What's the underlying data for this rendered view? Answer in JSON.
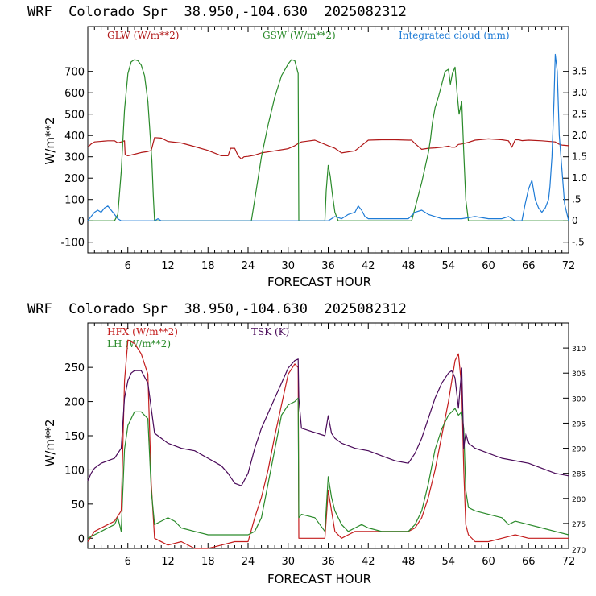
{
  "chart_data": [
    {
      "type": "line",
      "title": "WRF  Colorado Spr  38.950,-104.630  2025082312",
      "xlabel": "FORECAST HOUR",
      "ylabel": "W/m**2",
      "xlim": [
        0,
        72
      ],
      "ylim": [
        -150,
        910
      ],
      "y2lim": [
        -0.75,
        4.55
      ],
      "x_ticks": [
        6,
        12,
        18,
        24,
        30,
        36,
        42,
        48,
        54,
        60,
        66,
        72
      ],
      "y_ticks": [
        -100,
        0,
        100,
        200,
        300,
        400,
        500,
        600,
        700
      ],
      "y2_ticks": [
        {
          "v": -0.5,
          "label": "-.5"
        },
        {
          "v": 0,
          "label": "0"
        },
        {
          "v": 0.5,
          "label": ".5"
        },
        {
          "v": 1.0,
          "label": "1.0"
        },
        {
          "v": 1.5,
          "label": "1.5"
        },
        {
          "v": 2.0,
          "label": "2.0"
        },
        {
          "v": 2.5,
          "label": "2.5"
        },
        {
          "v": 3.0,
          "label": "3.0"
        },
        {
          "v": 3.5,
          "label": "3.5"
        }
      ],
      "series": [
        {
          "name": "GLW (W/m**2)",
          "color": "#b01818",
          "axis": "left",
          "x": [
            0,
            0.5,
            1,
            3,
            3.5,
            4,
            4.5,
            5,
            5.5,
            5.6,
            6,
            7,
            8,
            9,
            9.5,
            10,
            11,
            12,
            14,
            16,
            18,
            20,
            21,
            21.4,
            22,
            22.5,
            23,
            23.4,
            24,
            25,
            26,
            28,
            30,
            31,
            31.5,
            32,
            34,
            36,
            37,
            38,
            40,
            42,
            44,
            46,
            48,
            48.5,
            49,
            50,
            51,
            52,
            53,
            54,
            54.5,
            55,
            55.5,
            56,
            57,
            58,
            60,
            62,
            63,
            63.5,
            64,
            64.5,
            65,
            66,
            68,
            70,
            70.5,
            71,
            72
          ],
          "y": [
            345,
            360,
            370,
            375,
            375,
            375,
            365,
            370,
            375,
            310,
            305,
            312,
            320,
            325,
            330,
            390,
            388,
            372,
            365,
            348,
            330,
            305,
            305,
            340,
            340,
            305,
            290,
            300,
            302,
            308,
            318,
            328,
            338,
            352,
            362,
            370,
            378,
            352,
            340,
            318,
            328,
            378,
            380,
            380,
            378,
            378,
            362,
            335,
            340,
            342,
            345,
            350,
            345,
            345,
            358,
            360,
            368,
            378,
            384,
            380,
            375,
            345,
            380,
            380,
            376,
            378,
            375,
            370,
            360,
            355,
            352
          ]
        },
        {
          "name": "GSW (W/m**2)",
          "color": "#2a8a2a",
          "axis": "left",
          "x": [
            0,
            4,
            4.5,
            5,
            5.5,
            6,
            6.5,
            7,
            7.5,
            8,
            8.5,
            9,
            9.3,
            9.6,
            9.8,
            10,
            24.5,
            25,
            26,
            27,
            28,
            29,
            30,
            30.5,
            31,
            31.5,
            31.6,
            32,
            35.5,
            35.7,
            36,
            36.3,
            36.6,
            37,
            37.5,
            38,
            48.5,
            49,
            50,
            51,
            51.3,
            51.6,
            52,
            52.5,
            53,
            53.5,
            54,
            54.3,
            54.6,
            55,
            55.3,
            55.6,
            56,
            56.3,
            56.6,
            57,
            72
          ],
          "y": [
            0,
            0,
            30,
            230,
            520,
            690,
            745,
            755,
            750,
            730,
            680,
            560,
            420,
            280,
            120,
            0,
            0,
            100,
            300,
            450,
            580,
            680,
            735,
            755,
            750,
            690,
            0,
            0,
            0,
            140,
            260,
            210,
            130,
            40,
            0,
            0,
            0,
            60,
            180,
            320,
            380,
            460,
            530,
            580,
            640,
            700,
            710,
            640,
            690,
            720,
            600,
            500,
            560,
            320,
            100,
            0,
            0
          ]
        },
        {
          "name": "Integrated cloud (mm)",
          "color": "#1e7bd6",
          "axis": "right",
          "x": [
            0,
            0.5,
            1,
            1.5,
            2,
            2.5,
            3,
            3.5,
            4,
            4.5,
            5,
            10,
            10.5,
            11,
            11.5,
            36,
            36.5,
            37,
            38,
            39,
            40,
            40.5,
            41,
            41.5,
            42,
            44,
            46,
            48,
            49,
            50,
            51,
            52,
            53,
            54,
            56,
            58,
            60,
            62,
            63,
            64,
            65,
            65.5,
            66,
            66.5,
            67,
            67.5,
            68,
            68.5,
            69,
            69.2,
            69.5,
            69.8,
            70,
            70.3,
            70.6,
            71,
            71.4,
            72
          ],
          "y": [
            0,
            0.1,
            0.2,
            0.25,
            0.2,
            0.3,
            0.35,
            0.25,
            0.15,
            0.05,
            0,
            0,
            0.05,
            0,
            0,
            0,
            0.05,
            0.1,
            0.05,
            0.15,
            0.2,
            0.35,
            0.25,
            0.1,
            0.05,
            0.05,
            0.05,
            0.05,
            0.2,
            0.25,
            0.15,
            0.1,
            0.05,
            0.05,
            0.05,
            0.1,
            0.05,
            0.05,
            0.1,
            0,
            0,
            0.4,
            0.75,
            0.95,
            0.5,
            0.3,
            0.2,
            0.3,
            0.5,
            0.8,
            1.5,
            2.8,
            3.9,
            3.5,
            2.0,
            1.2,
            0.4,
            0
          ]
        }
      ]
    },
    {
      "type": "line",
      "title": "WRF  Colorado Spr  38.950,-104.630  2025082312",
      "xlabel": "FORECAST HOUR",
      "ylabel": "W/m**2",
      "xlim": [
        0,
        72
      ],
      "ylim": [
        -15,
        315
      ],
      "y2lim": [
        270,
        315
      ],
      "x_ticks": [
        6,
        12,
        18,
        24,
        30,
        36,
        42,
        48,
        54,
        60,
        66,
        72
      ],
      "y_ticks": [
        0,
        50,
        100,
        150,
        200,
        250
      ],
      "y2_ticks": [
        {
          "v": 275,
          "label": "275"
        },
        {
          "v": 280,
          "label": "280"
        },
        {
          "v": 285,
          "label": "285"
        },
        {
          "v": 290,
          "label": "290"
        },
        {
          "v": 295,
          "label": "295"
        },
        {
          "v": 300,
          "label": "300"
        },
        {
          "v": 305,
          "label": "305"
        },
        {
          "v": 310,
          "label": "310"
        }
      ],
      "y2_bottom_label": "270",
      "series": [
        {
          "name": "HFX (W/m**2)",
          "color": "#c41e1e",
          "axis": "left",
          "x": [
            0,
            1,
            2,
            3,
            4,
            5,
            5.5,
            6,
            7,
            8,
            9,
            9.5,
            10,
            12,
            14,
            16,
            18,
            20,
            22,
            24,
            25,
            26,
            27,
            28,
            29,
            30,
            31,
            31.5,
            31.6,
            32,
            35.5,
            36,
            36.5,
            37,
            38,
            39,
            40,
            42,
            44,
            46,
            48,
            49,
            50,
            51,
            52,
            53,
            54,
            55,
            55.5,
            56,
            56.3,
            56.6,
            57,
            58,
            60,
            62,
            64,
            66,
            68,
            70,
            72
          ],
          "y": [
            -5,
            10,
            15,
            20,
            25,
            40,
            230,
            290,
            285,
            270,
            240,
            80,
            0,
            -10,
            -5,
            -15,
            -15,
            -10,
            -5,
            -5,
            30,
            60,
            100,
            150,
            195,
            240,
            255,
            250,
            0,
            0,
            0,
            70,
            40,
            10,
            0,
            5,
            10,
            10,
            10,
            10,
            10,
            15,
            30,
            60,
            100,
            150,
            200,
            260,
            270,
            220,
            100,
            20,
            5,
            -5,
            -5,
            0,
            5,
            0,
            0,
            0,
            0
          ]
        },
        {
          "name": "LH (W/m**2)",
          "color": "#2a8a2a",
          "axis": "left",
          "x": [
            0,
            1,
            2,
            3,
            4,
            4.5,
            5,
            5.5,
            6,
            6.5,
            7,
            8,
            9,
            9.5,
            10,
            11,
            12,
            13,
            14,
            16,
            18,
            20,
            22,
            24,
            25,
            26,
            27,
            28,
            29,
            30,
            31,
            31.5,
            31.6,
            32,
            34,
            35.5,
            36,
            36.5,
            37,
            38,
            39,
            40,
            41,
            42,
            44,
            46,
            48,
            49,
            50,
            51,
            52,
            53,
            54,
            55,
            55.5,
            56,
            56.3,
            56.6,
            57,
            58,
            60,
            62,
            63,
            64,
            66,
            68,
            70,
            72
          ],
          "y": [
            0,
            5,
            10,
            15,
            20,
            30,
            10,
            130,
            165,
            175,
            185,
            185,
            175,
            70,
            20,
            25,
            30,
            25,
            15,
            10,
            5,
            5,
            5,
            5,
            10,
            30,
            80,
            130,
            180,
            195,
            200,
            205,
            30,
            35,
            30,
            10,
            90,
            60,
            40,
            20,
            10,
            15,
            20,
            15,
            10,
            10,
            10,
            20,
            40,
            80,
            130,
            160,
            180,
            190,
            180,
            185,
            160,
            70,
            45,
            40,
            35,
            30,
            20,
            25,
            20,
            15,
            10,
            5
          ]
        },
        {
          "name": "TSK (K)",
          "color": "#4a0a5a",
          "axis": "right",
          "x": [
            0,
            0.5,
            1,
            2,
            3,
            4,
            5,
            5.5,
            6,
            6.5,
            7,
            8,
            9,
            10,
            11,
            12,
            14,
            16,
            18,
            20,
            21,
            21.5,
            22,
            23,
            24,
            25,
            26,
            27,
            28,
            29,
            30,
            31,
            31.5,
            31.6,
            32,
            35.5,
            36,
            36.5,
            37,
            38,
            40,
            42,
            44,
            46,
            48,
            49,
            50,
            51,
            52,
            53,
            54,
            54.5,
            55,
            55.5,
            56,
            56.3,
            56.6,
            57,
            58,
            60,
            62,
            64,
            66,
            68,
            70,
            72
          ],
          "y": [
            283.5,
            285,
            286,
            287,
            287.5,
            288,
            290,
            300,
            303.5,
            305,
            305.5,
            305.5,
            303,
            293,
            292,
            291,
            290,
            289.5,
            288,
            286.5,
            285,
            284,
            283,
            282.5,
            285,
            290,
            294,
            297,
            300,
            303,
            306,
            307.5,
            307.8,
            300,
            294,
            292.5,
            296.5,
            293,
            292,
            291,
            290,
            289.5,
            288.5,
            287.5,
            287,
            289,
            292,
            296,
            300,
            303,
            305,
            305.5,
            304,
            298,
            306,
            290,
            293,
            291,
            290,
            289,
            288,
            287.5,
            287,
            286,
            285,
            284.5
          ]
        }
      ]
    }
  ]
}
